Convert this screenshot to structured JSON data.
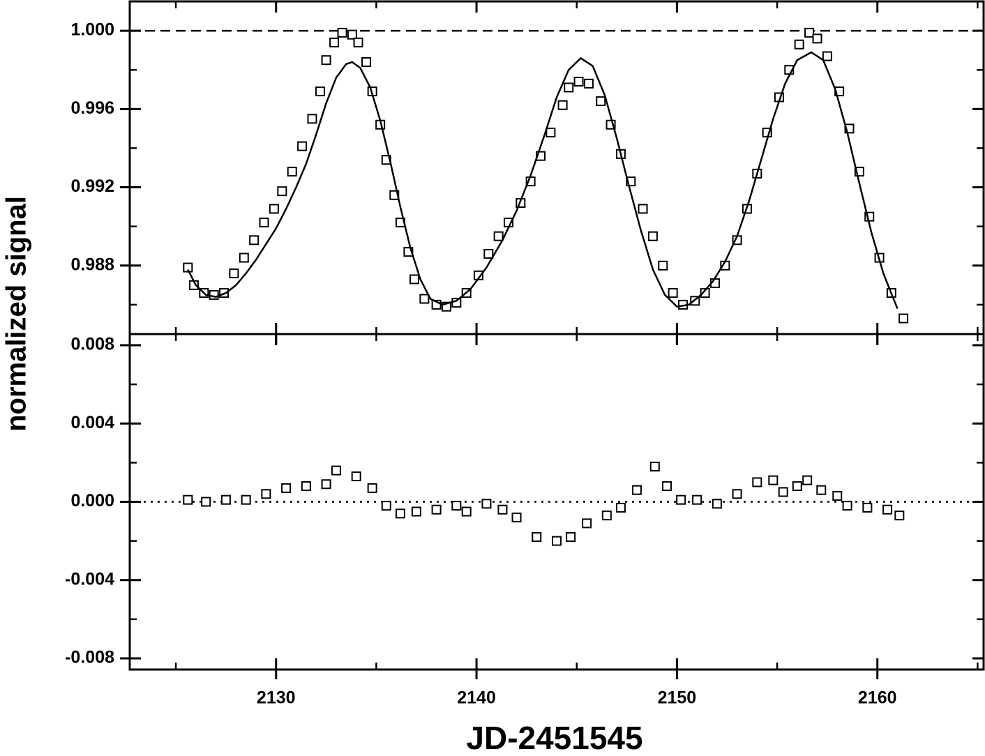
{
  "chart_data": [
    {
      "type": "scatter",
      "ylabel": "normalized signal",
      "xlim": [
        2122.7,
        2165.3
      ],
      "ylim": [
        0.9845,
        1.0015
      ],
      "xticks": [
        2130,
        2140,
        2150,
        2160
      ],
      "minor_xticks": [
        2125,
        2135,
        2145,
        2155,
        2165
      ],
      "show_xtick_labels": false,
      "yticks": [
        0.988,
        0.992,
        0.996,
        {
          "value": 1,
          "label": "1.000"
        }
      ],
      "minor_yticks": [
        0.986,
        0.99,
        0.994,
        0.998
      ],
      "hline": {
        "value": 1,
        "style": "dashed"
      },
      "series": [
        {
          "style": "markers",
          "color": "#000000",
          "x": [
            2125.6,
            2125.9,
            2126.4,
            2126.9,
            2127.4,
            2127.9,
            2128.4,
            2128.9,
            2129.4,
            2129.9,
            2130.3,
            2130.8,
            2131.3,
            2131.8,
            2132.2,
            2132.5,
            2132.9,
            2133.3,
            2133.8,
            2134.1,
            2134.5,
            2134.8,
            2135.2,
            2135.5,
            2135.9,
            2136.2,
            2136.6,
            2136.9,
            2137.4,
            2138.0,
            2138.5,
            2139.0,
            2139.5,
            2140.1,
            2140.6,
            2141.1,
            2141.6,
            2142.2,
            2142.7,
            2143.2,
            2143.7,
            2144.3,
            2144.6,
            2145.1,
            2145.6,
            2146.2,
            2146.7,
            2147.2,
            2147.7,
            2148.3,
            2148.8,
            2149.3,
            2149.8,
            2150.3,
            2150.9,
            2151.4,
            2151.9,
            2152.4,
            2153.0,
            2153.5,
            2154.0,
            2154.5,
            2155.1,
            2155.6,
            2156.1,
            2156.6,
            2157.0,
            2157.5,
            2158.1,
            2158.6,
            2159.1,
            2159.6,
            2160.1,
            2160.7,
            2161.3
          ],
          "values": [
            0.9879,
            0.987,
            0.9866,
            0.9865,
            0.9866,
            0.9876,
            0.9884,
            0.9893,
            0.9902,
            0.9909,
            0.9918,
            0.9928,
            0.9941,
            0.9955,
            0.9969,
            0.9985,
            0.9994,
            0.9999,
            0.9998,
            0.9994,
            0.9984,
            0.9969,
            0.9952,
            0.9934,
            0.9916,
            0.9902,
            0.9887,
            0.9873,
            0.9863,
            0.986,
            0.9859,
            0.9861,
            0.9866,
            0.9875,
            0.9886,
            0.9895,
            0.9902,
            0.9912,
            0.9923,
            0.9936,
            0.9948,
            0.9962,
            0.9971,
            0.9974,
            0.9973,
            0.9964,
            0.9952,
            0.9937,
            0.9923,
            0.9909,
            0.9895,
            0.988,
            0.9866,
            0.986,
            0.9862,
            0.9866,
            0.9871,
            0.988,
            0.9893,
            0.9909,
            0.9927,
            0.9948,
            0.9966,
            0.998,
            0.9993,
            0.9999,
            0.9996,
            0.9987,
            0.9969,
            0.995,
            0.9928,
            0.9905,
            0.9884,
            0.9866,
            0.9853
          ]
        },
        {
          "style": "line",
          "color": "#000000",
          "x": [
            2125.6,
            2126,
            2126.5,
            2127,
            2127.5,
            2128,
            2128.5,
            2129,
            2129.5,
            2130,
            2130.5,
            2131,
            2131.5,
            2132,
            2132.5,
            2133,
            2133.5,
            2133.8,
            2134.2,
            2134.7,
            2135.2,
            2135.7,
            2136.2,
            2136.7,
            2137.2,
            2137.7,
            2138.3,
            2139,
            2139.7,
            2140.5,
            2141.3,
            2142,
            2142.7,
            2143.4,
            2144,
            2144.6,
            2145.2,
            2145.8,
            2146.4,
            2147,
            2147.6,
            2148.2,
            2148.8,
            2149.4,
            2150,
            2150.6,
            2151.2,
            2151.8,
            2152.4,
            2153,
            2153.6,
            2154.2,
            2154.8,
            2155.4,
            2156,
            2156.7,
            2157.3,
            2157.9,
            2158.5,
            2159.1,
            2159.7,
            2160.3,
            2161
          ],
          "values": [
            0.9878,
            0.987,
            0.9865,
            0.9864,
            0.9866,
            0.987,
            0.9876,
            0.9883,
            0.9891,
            0.9899,
            0.9909,
            0.992,
            0.9932,
            0.9947,
            0.9963,
            0.9976,
            0.9983,
            0.9984,
            0.9981,
            0.9971,
            0.9954,
            0.9933,
            0.991,
            0.9889,
            0.9873,
            0.9863,
            0.986,
            0.9862,
            0.9868,
            0.9879,
            0.9893,
            0.9908,
            0.9926,
            0.9947,
            0.9966,
            0.998,
            0.9986,
            0.9982,
            0.9967,
            0.9945,
            0.9921,
            0.9898,
            0.9878,
            0.9865,
            0.9859,
            0.986,
            0.9865,
            0.9872,
            0.9882,
            0.9895,
            0.9913,
            0.9934,
            0.9955,
            0.9973,
            0.9985,
            0.9989,
            0.9985,
            0.997,
            0.9948,
            0.9922,
            0.9897,
            0.9876,
            0.9858
          ]
        }
      ]
    },
    {
      "type": "scatter",
      "xlabel": "JD-2451545",
      "xlim": [
        2122.7,
        2165.3
      ],
      "ylim": [
        -0.00857,
        0.00857
      ],
      "xticks": [
        2130,
        2140,
        2150,
        2160
      ],
      "minor_xticks": [
        2125,
        2135,
        2145,
        2155,
        2165
      ],
      "show_xtick_labels": true,
      "yticks": [
        -0.008,
        -0.004,
        {
          "value": 0,
          "label": "0.000"
        },
        0.004,
        0.008
      ],
      "minor_yticks": [
        -0.006,
        -0.002,
        0.002,
        0.006
      ],
      "hline": {
        "value": 0,
        "style": "dotted"
      },
      "series": [
        {
          "style": "markers",
          "color": "#000000",
          "x": [
            2125.6,
            2126.5,
            2127.5,
            2128.5,
            2129.5,
            2130.5,
            2131.5,
            2132.5,
            2133.0,
            2134.0,
            2134.8,
            2135.5,
            2136.2,
            2137,
            2138,
            2139,
            2139.5,
            2140.5,
            2141.3,
            2142,
            2143,
            2144,
            2144.7,
            2145.5,
            2146.5,
            2147.2,
            2148,
            2148.9,
            2149.5,
            2150.2,
            2151,
            2152,
            2153,
            2154,
            2154.8,
            2155.3,
            2156,
            2156.5,
            2157.2,
            2158,
            2158.5,
            2159.5,
            2160.5,
            2161.1
          ],
          "values": [
            0.0001,
            0.0,
            0.0001,
            0.0001,
            0.0004,
            0.0007,
            0.0008,
            0.0009,
            0.0016,
            0.0013,
            0.0007,
            -0.0002,
            -0.0006,
            -0.0005,
            -0.0004,
            -0.0002,
            -0.0005,
            -0.0001,
            -0.0004,
            -0.0008,
            -0.0018,
            -0.002,
            -0.0018,
            -0.0011,
            -0.0007,
            -0.0003,
            0.0006,
            0.0018,
            0.0008,
            0.0001,
            0.0001,
            -0.0001,
            0.0004,
            0.001,
            0.0011,
            0.0005,
            0.0008,
            0.0011,
            0.0006,
            0.0003,
            -0.0002,
            -0.0003,
            -0.0004,
            -0.0007
          ]
        }
      ]
    }
  ]
}
